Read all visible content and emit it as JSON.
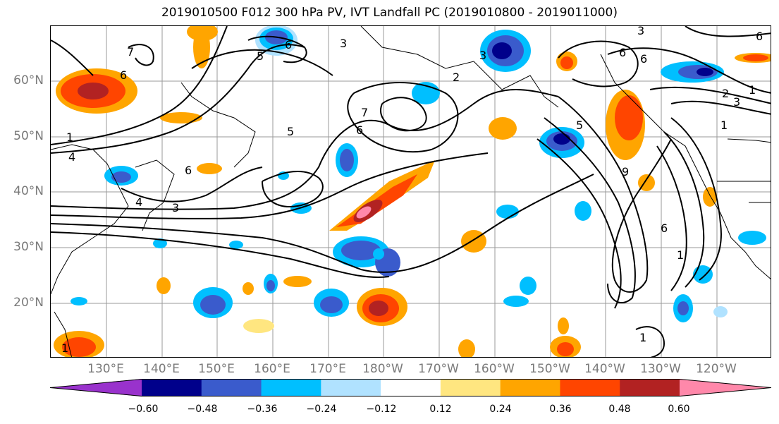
{
  "title": "2019010500 F012 300 hPa PV, IVT Landfall PC (2019010800 - 2019011000)",
  "lat_labels": [
    "60°N",
    "50°N",
    "40°N",
    "30°N",
    "20°N"
  ],
  "lon_labels": [
    "130°E",
    "140°E",
    "150°E",
    "160°E",
    "170°E",
    "180°W",
    "170°W",
    "160°W",
    "150°W",
    "140°W",
    "130°W",
    "120°W"
  ],
  "colorbar": {
    "colors": [
      "#9932CC",
      "#00008B",
      "#3A5BCC",
      "#00BFFF",
      "#B0E2FF",
      "#FFFFFF",
      "#FFE680",
      "#FFA500",
      "#FF4500",
      "#B22222",
      "#FF88AA"
    ],
    "ticks": [
      "−0.60",
      "−0.48",
      "−0.36",
      "−0.24",
      "−0.12",
      "0.12",
      "0.24",
      "0.36",
      "0.48",
      "0.60"
    ]
  },
  "contour_labels": [
    "1",
    "4",
    "6",
    "5",
    "6",
    "3",
    "6",
    "7",
    "7",
    "5",
    "6",
    "3",
    "3",
    "5",
    "2",
    "6",
    "1",
    "3",
    "6",
    "2",
    "1",
    "6",
    "9",
    "6",
    "1",
    "3",
    "1",
    "4",
    "1"
  ]
}
